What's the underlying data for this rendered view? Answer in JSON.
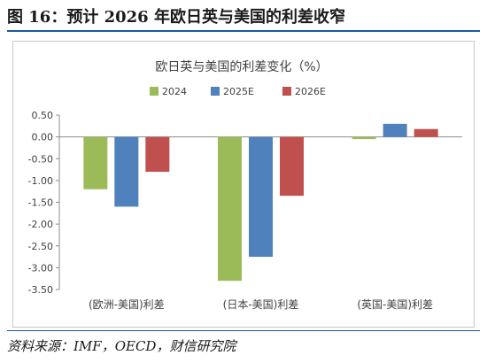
{
  "figure": {
    "title": "图 16：预计 2026 年欧日英与美国的利差收窄",
    "source": "资料来源：IMF，OECD，财信研究院"
  },
  "chart_data": {
    "type": "bar",
    "title": "欧日英与美国的利差变化（%）",
    "xlabel": "",
    "ylabel": "",
    "categories": [
      "(欧洲-美国)利差",
      "(日本-美国)利差",
      "(英国-美国)利差"
    ],
    "series": [
      {
        "name": "2024",
        "color": "#9bbb59",
        "values": [
          -1.2,
          -3.3,
          -0.05
        ]
      },
      {
        "name": "2025E",
        "color": "#4f81bd",
        "values": [
          -1.6,
          -2.75,
          0.3
        ]
      },
      {
        "name": "2026E",
        "color": "#c0504d",
        "values": [
          -0.8,
          -1.35,
          0.18
        ]
      }
    ],
    "ylim": [
      -3.5,
      0.5
    ],
    "yticks": [
      "0.50",
      "0.00",
      "-0.50",
      "-1.00",
      "-1.50",
      "-2.00",
      "-2.50",
      "-3.00",
      "-3.50"
    ],
    "grid": false,
    "legend": "top"
  }
}
